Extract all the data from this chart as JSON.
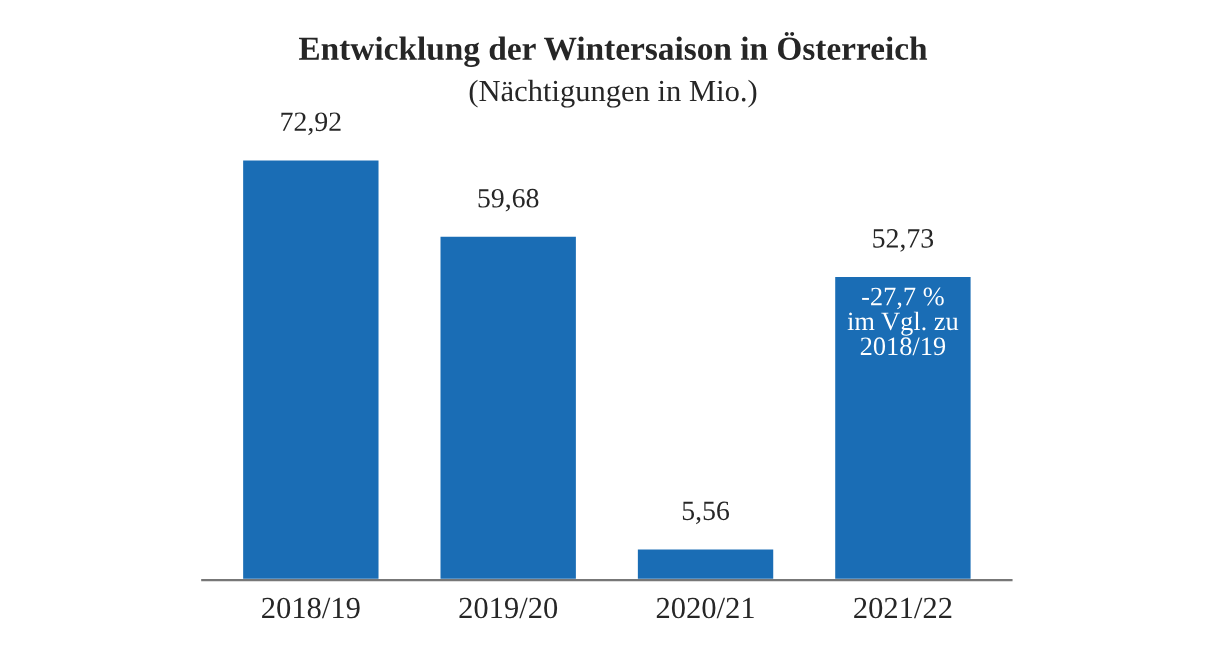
{
  "chart_data": {
    "type": "bar",
    "title": "Entwicklung der Wintersaison in Österreich",
    "subtitle": "(Nächtigungen in Mio.)",
    "categories": [
      "2018/19",
      "2019/20",
      "2020/21",
      "2021/22"
    ],
    "values": [
      72.92,
      59.68,
      5.56,
      52.73
    ],
    "value_labels": [
      "72,92",
      "59,68",
      "5,56",
      "52,73"
    ],
    "color": "#1a6db5",
    "annotations": [
      "-27,7 %\nim Vgl. zu\n2018/19"
    ],
    "grid": false,
    "legend": false
  }
}
